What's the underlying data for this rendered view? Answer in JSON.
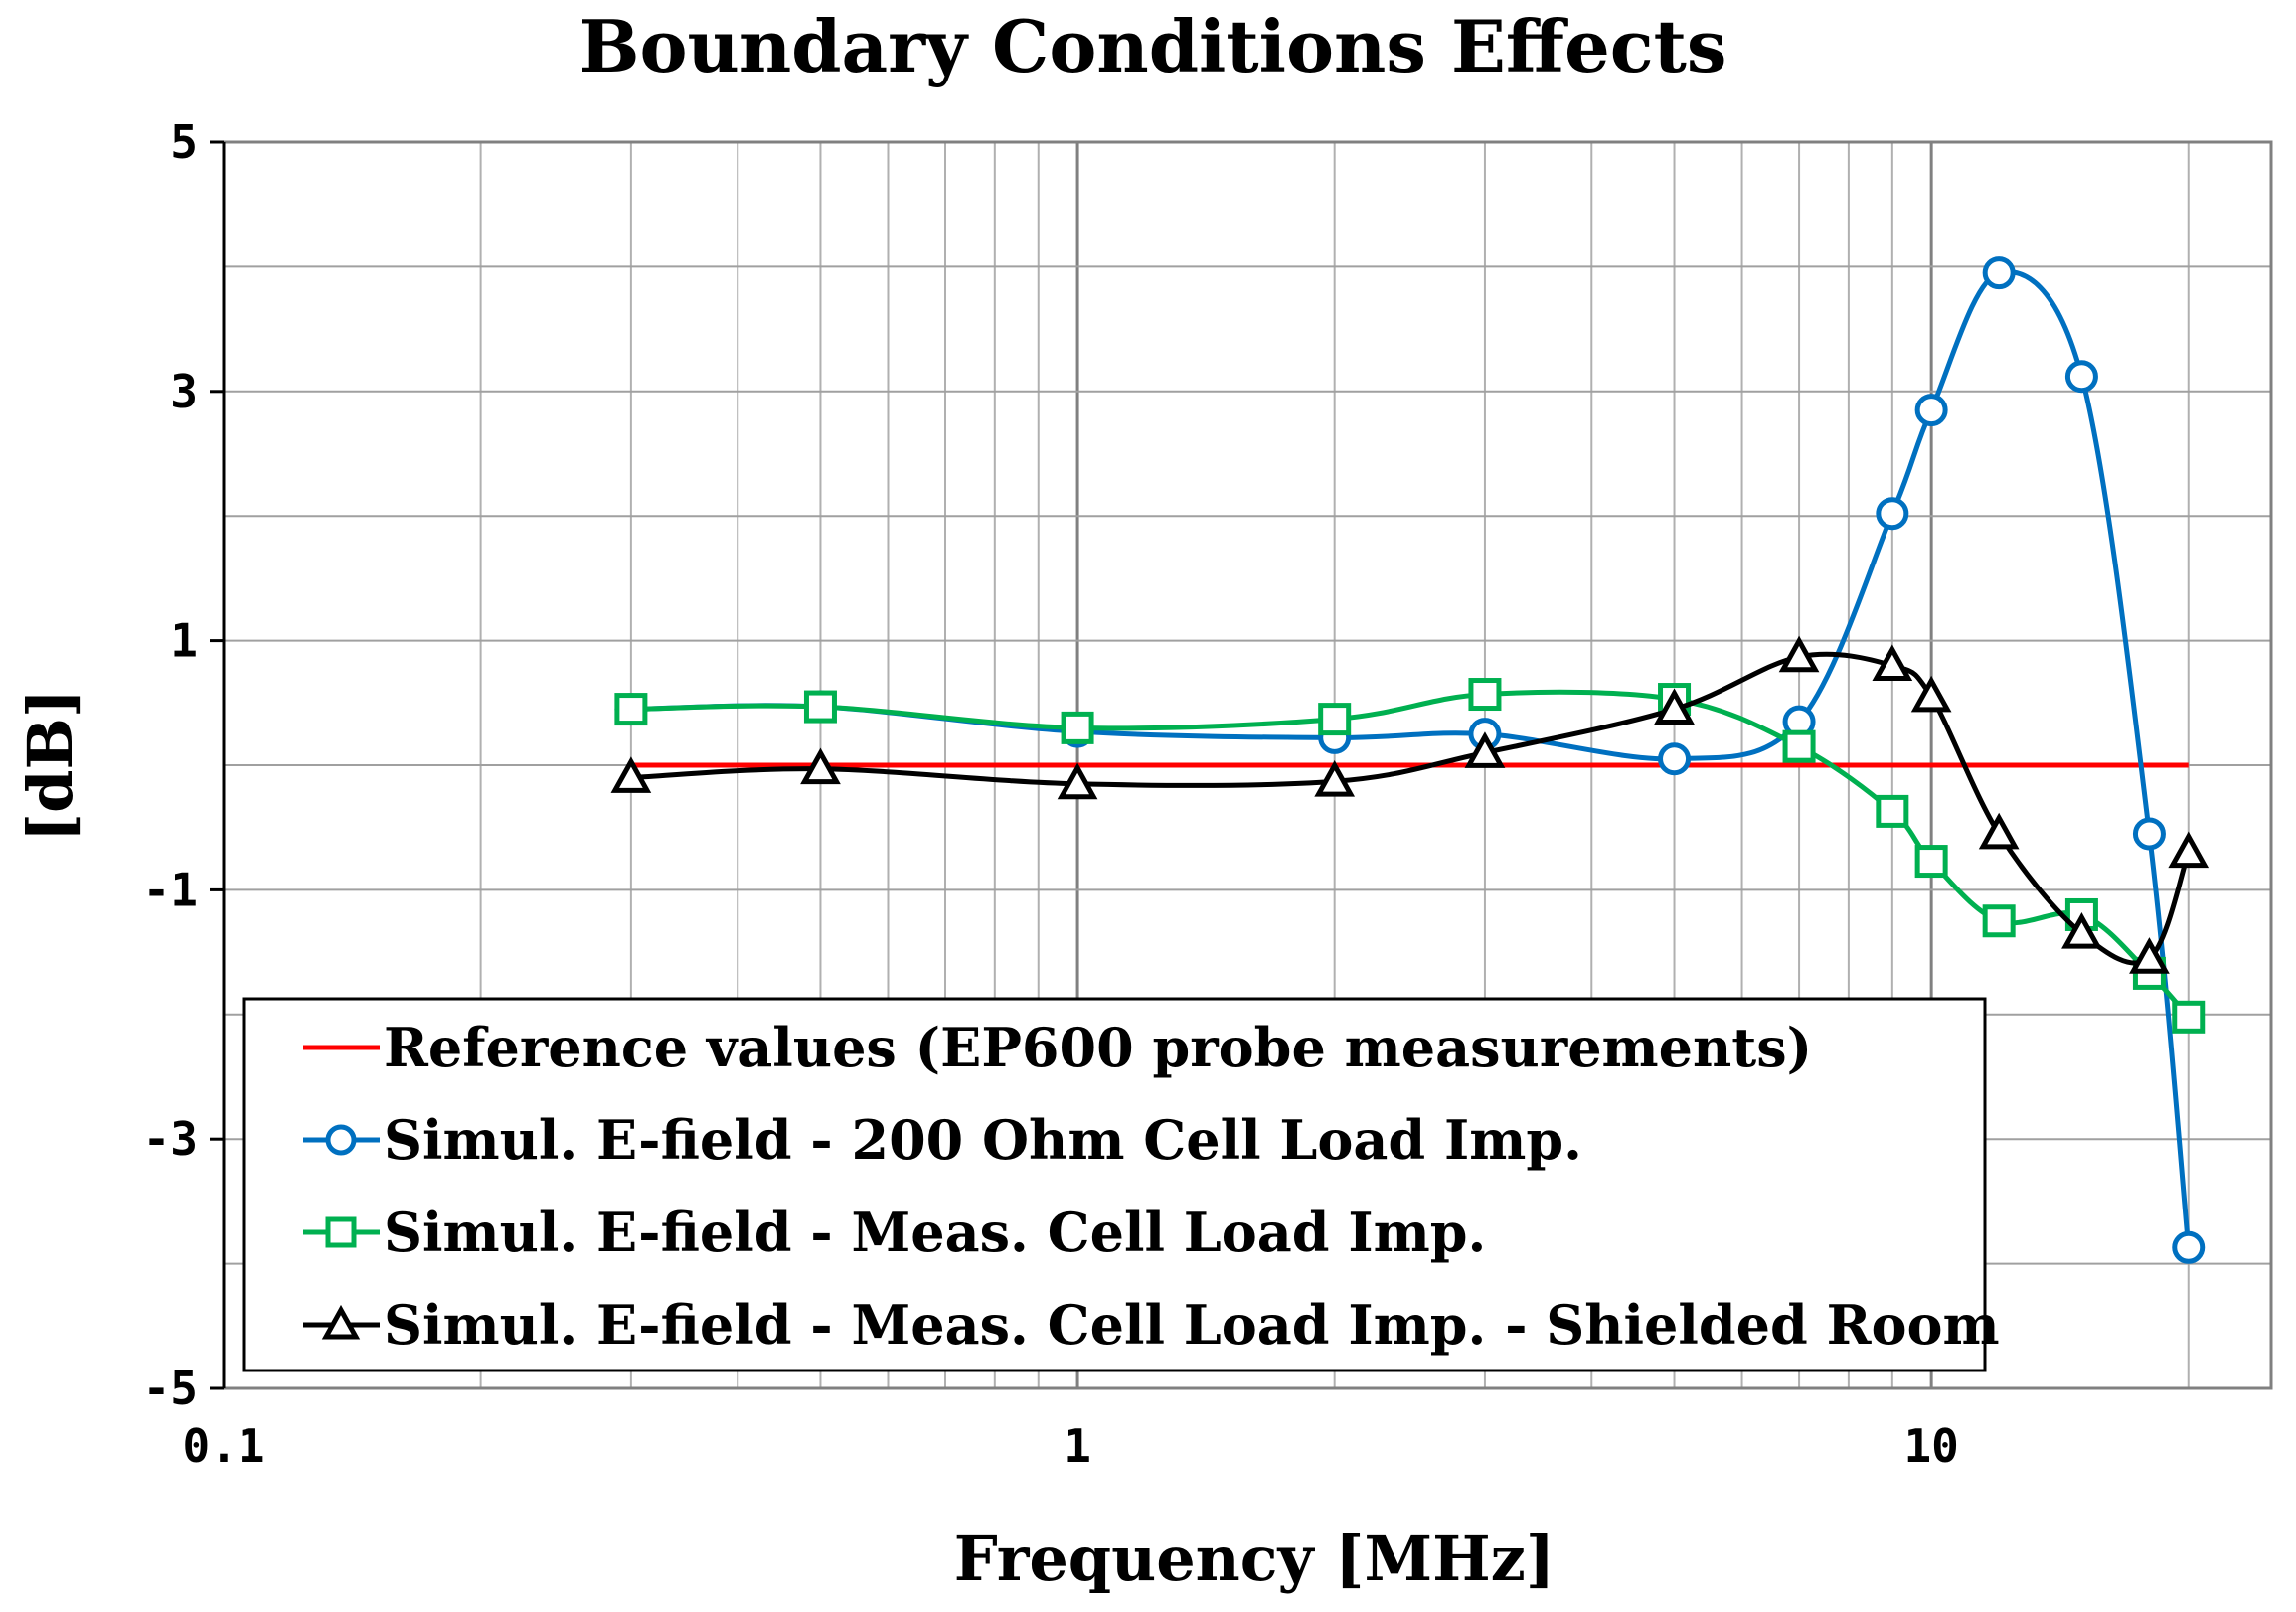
{
  "chart_data": {
    "type": "line",
    "title": "Boundary Conditions Effects",
    "xlabel": "Frequency [MHz]",
    "ylabel": "[dB]",
    "xscale": "log",
    "xlim": [
      0.1,
      25
    ],
    "ylim": [
      -5,
      5
    ],
    "xticks": [
      0.1,
      1,
      10
    ],
    "xtick_labels": [
      "0.1",
      "1",
      "10"
    ],
    "yticks": [
      5,
      3,
      1,
      -1,
      -3,
      -5
    ],
    "ytick_labels": [
      "5",
      "3",
      "1",
      "-1",
      "-3",
      "-5"
    ],
    "grid": true,
    "legend_position": "bottom-left",
    "series": [
      {
        "name": "Reference values (EP600 probe measurements)",
        "color": "#ff0000",
        "marker": "none",
        "x": [
          0.3,
          20
        ],
        "y": [
          0,
          0
        ]
      },
      {
        "name": "Simul. E-field - 200 Ohm Cell Load Imp.",
        "color": "#0070c0",
        "marker": "circle",
        "x": [
          0.3,
          0.5,
          1,
          2,
          3,
          5,
          7,
          9,
          10,
          12,
          15,
          18,
          20
        ],
        "y": [
          0.45,
          0.47,
          0.27,
          0.22,
          0.25,
          0.05,
          0.35,
          2.02,
          2.85,
          3.95,
          3.12,
          -0.55,
          -3.87
        ]
      },
      {
        "name": "Simul. E-field - Meas. Cell Load Imp.",
        "color": "#00b050",
        "marker": "square",
        "x": [
          0.3,
          0.5,
          1,
          2,
          3,
          5,
          7,
          9,
          10,
          12,
          15,
          18,
          20
        ],
        "y": [
          0.45,
          0.47,
          0.3,
          0.37,
          0.57,
          0.53,
          0.15,
          -0.37,
          -0.77,
          -1.25,
          -1.2,
          -1.67,
          -2.02
        ]
      },
      {
        "name": "Simul. E-field - Meas. Cell Load Imp. - Shielded Room",
        "color": "#000000",
        "marker": "triangle",
        "x": [
          0.3,
          0.5,
          1,
          2,
          3,
          5,
          7,
          9,
          10,
          12,
          15,
          18,
          20
        ],
        "y": [
          -0.1,
          -0.03,
          -0.15,
          -0.13,
          0.1,
          0.45,
          0.87,
          0.8,
          0.55,
          -0.55,
          -1.35,
          -1.55,
          -0.7
        ]
      }
    ]
  }
}
